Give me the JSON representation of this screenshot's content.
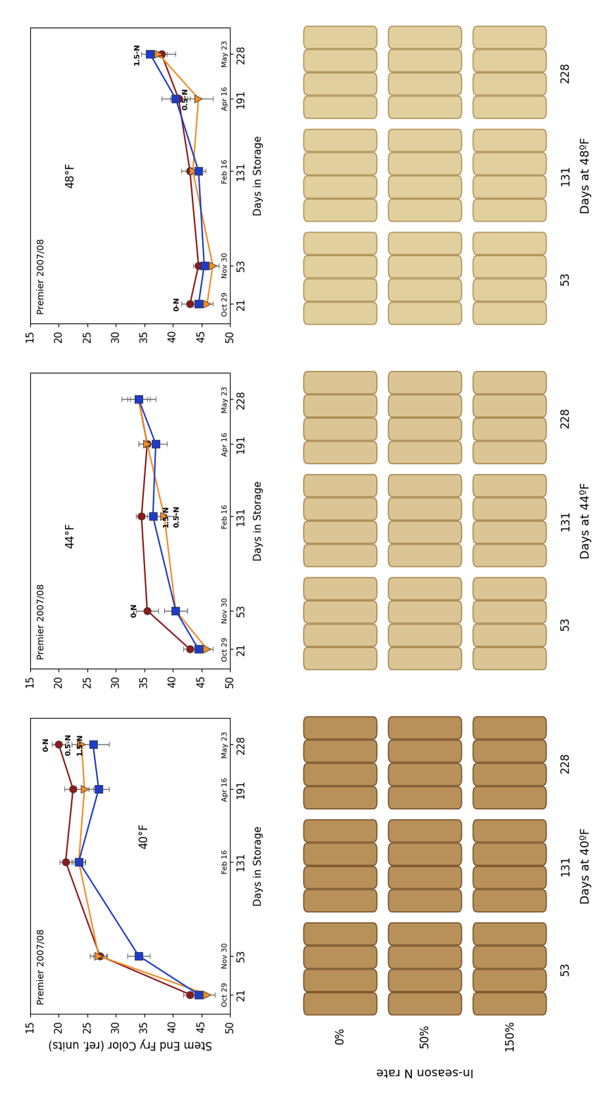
{
  "chart_data": [
    {
      "type": "line",
      "title": "Premier 2007/08",
      "note": "40°F",
      "xlabel": "Days in Storage",
      "ylabel": "Stem End Fry Color (ref. units)",
      "x": [
        21,
        53,
        131,
        191,
        228
      ],
      "dates": [
        "Oct 29",
        "Nov 30",
        "Feb 16",
        "Apr 16",
        "May 23"
      ],
      "xlim": [
        5,
        250
      ],
      "xticks": [
        21,
        53,
        131,
        191,
        228
      ],
      "ylim": [
        15,
        50
      ],
      "yticks": [
        15,
        20,
        25,
        30,
        35,
        40,
        45,
        50
      ],
      "series": [
        {
          "name": "0-N",
          "color": "#8b1a1a",
          "marker": "circle",
          "values": [
            43,
            27.2,
            21.2,
            22.5,
            20
          ],
          "errors": [
            1.2,
            1.2,
            1.0,
            1.5,
            1.2
          ]
        },
        {
          "name": "0.5-N",
          "color": "#f08c28",
          "marker": "triangle_down",
          "values": [
            46,
            27,
            23.5,
            24.5,
            24
          ],
          "errors": [
            1.3,
            1.5,
            1.0,
            1.5,
            1.8
          ]
        },
        {
          "name": "1.5-N",
          "color": "#1e3cc8",
          "marker": "square",
          "values": [
            44.5,
            34,
            23.5,
            27,
            26
          ],
          "errors": [
            1.0,
            2.0,
            1.2,
            1.8,
            2.8
          ]
        }
      ],
      "annotations": [
        {
          "text": "0-N",
          "x": 228
        },
        {
          "text": "0.5-N",
          "x": 228
        },
        {
          "text": "1.5-N",
          "x": 228
        }
      ]
    },
    {
      "type": "line",
      "title": "Premier 2007/08",
      "note": "44°F",
      "xlabel": "Days in Storage",
      "x": [
        21,
        53,
        131,
        191,
        228
      ],
      "dates": [
        "Oct 29",
        "Nov 30",
        "Feb 16",
        "Apr 16",
        "May 23"
      ],
      "xlim": [
        5,
        250
      ],
      "xticks": [
        21,
        53,
        131,
        191,
        228
      ],
      "ylim": [
        15,
        50
      ],
      "yticks": [
        15,
        20,
        25,
        30,
        35,
        40,
        45,
        50
      ],
      "series": [
        {
          "name": "0-N",
          "color": "#8b1a1a",
          "marker": "circle",
          "values": [
            43,
            35.5,
            34.5,
            35.5,
            34
          ],
          "errors": [
            1.2,
            2.0,
            1.0,
            1.5,
            1.5
          ]
        },
        {
          "name": "0.5-N",
          "color": "#f08c28",
          "marker": "triangle_down",
          "values": [
            46,
            40.5,
            38.5,
            35.5,
            34
          ],
          "errors": [
            1.0,
            2.0,
            2.0,
            1.5,
            2.0
          ]
        },
        {
          "name": "1.5-N",
          "color": "#1e3cc8",
          "marker": "square",
          "values": [
            44.5,
            40.5,
            36.5,
            37,
            34
          ],
          "errors": [
            1.0,
            2.0,
            1.5,
            2.0,
            3.0
          ]
        }
      ],
      "annotations": [
        {
          "text": "0-N",
          "x": 53
        },
        {
          "text": "1.5-N",
          "x": 131
        },
        {
          "text": "0.5-N",
          "x": 131
        }
      ]
    },
    {
      "type": "line",
      "title": "Premier 2007/08",
      "note": "48°F",
      "xlabel": "Days in Storage",
      "x": [
        21,
        53,
        131,
        191,
        228
      ],
      "dates": [
        "Oct 29",
        "Nov 30",
        "Feb 16",
        "Apr 16",
        "May 23"
      ],
      "xlim": [
        5,
        250
      ],
      "xticks": [
        21,
        53,
        131,
        191,
        228
      ],
      "ylim": [
        15,
        50
      ],
      "yticks": [
        15,
        20,
        25,
        30,
        35,
        40,
        45,
        50
      ],
      "series": [
        {
          "name": "0-N",
          "color": "#8b1a1a",
          "marker": "circle",
          "values": [
            43,
            44.5,
            43,
            41,
            38
          ],
          "errors": [
            1.5,
            1.0,
            1.5,
            1.5,
            2.5
          ]
        },
        {
          "name": "0.5-N",
          "color": "#f08c28",
          "marker": "triangle_down",
          "values": [
            46,
            47,
            43.5,
            44.5,
            37.5
          ],
          "errors": [
            1.0,
            1.0,
            1.0,
            2.5,
            1.5
          ]
        },
        {
          "name": "1.5-N",
          "color": "#1e3cc8",
          "marker": "square",
          "values": [
            44.5,
            45.5,
            44.5,
            40.5,
            36
          ],
          "errors": [
            1.0,
            1.0,
            1.2,
            2.5,
            1.5
          ]
        }
      ],
      "annotations": [
        {
          "text": "0-N",
          "x": 21
        },
        {
          "text": "0.5-N",
          "x": 191
        },
        {
          "text": "1.5-N",
          "x": 228
        }
      ]
    }
  ],
  "photos": {
    "n_rate_label": "In-season N rate",
    "n_rates": [
      "0%",
      "50%",
      "150%"
    ],
    "groups": [
      "Days at 40ºF",
      "Days at 44ºF",
      "Days at 48ºF"
    ],
    "days": [
      53,
      131,
      228
    ]
  }
}
